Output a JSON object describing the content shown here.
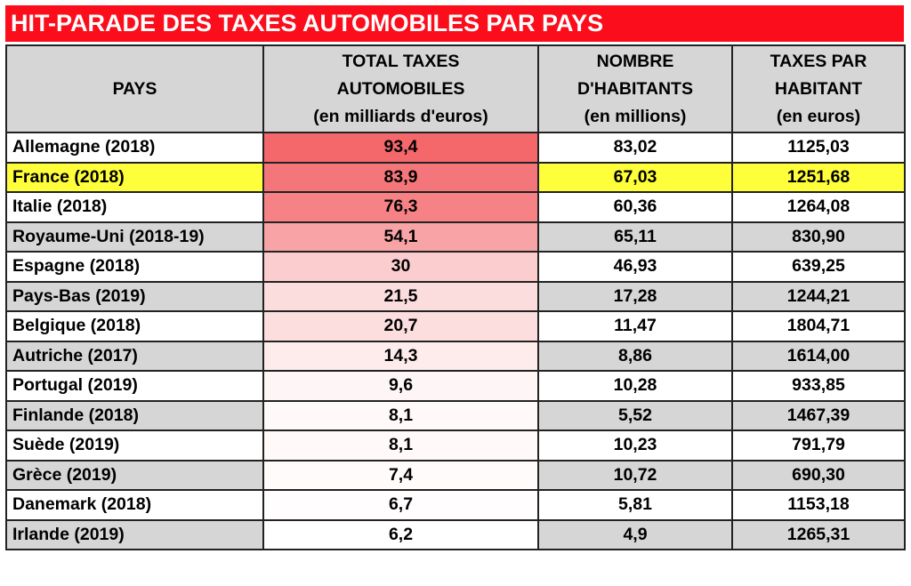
{
  "chart_data": {
    "type": "table",
    "title": "HIT-PARADE DES TAXES AUTOMOBILES PAR PAYS",
    "columns": [
      [
        "PAYS"
      ],
      [
        "TOTAL TAXES",
        "AUTOMOBILES",
        "(en milliards d'euros)"
      ],
      [
        "NOMBRE",
        "D'HABITANTS",
        "(en millions)"
      ],
      [
        "TAXES PAR",
        "HABITANT",
        "(en euros)"
      ]
    ],
    "rows": [
      [
        "Allemagne (2018)",
        "93,4",
        "83,02",
        "1125,03"
      ],
      [
        "France (2018)",
        "83,9",
        "67,03",
        "1251,68"
      ],
      [
        "Italie (2018)",
        "76,3",
        "60,36",
        "1264,08"
      ],
      [
        "Royaume-Uni (2018-19)",
        "54,1",
        "65,11",
        "830,90"
      ],
      [
        "Espagne (2018)",
        "30",
        "46,93",
        "639,25"
      ],
      [
        "Pays-Bas (2019)",
        "21,5",
        "17,28",
        "1244,21"
      ],
      [
        "Belgique (2018)",
        "20,7",
        "11,47",
        "1804,71"
      ],
      [
        "Autriche (2017)",
        "14,3",
        "8,86",
        "1614,00"
      ],
      [
        "Portugal (2019)",
        "9,6",
        "10,28",
        "933,85"
      ],
      [
        "Finlande (2018)",
        "8,1",
        "5,52",
        "1467,39"
      ],
      [
        "Suède (2019)",
        "8,1",
        "10,23",
        "791,79"
      ],
      [
        "Grèce (2019)",
        "7,4",
        "10,72",
        "690,30"
      ],
      [
        "Danemark (2018)",
        "6,7",
        "5,81",
        "1153,18"
      ],
      [
        "Irlande (2019)",
        "6,2",
        "4,9",
        "1265,31"
      ]
    ],
    "highlighted_row": "France (2018)",
    "colors": {
      "title_bg": "#fc0d1b",
      "highlight": "#fefe3a",
      "header_bg": "#d6d6d6",
      "heat_max": "#f4686c",
      "heat_min": "#ffffff"
    }
  }
}
